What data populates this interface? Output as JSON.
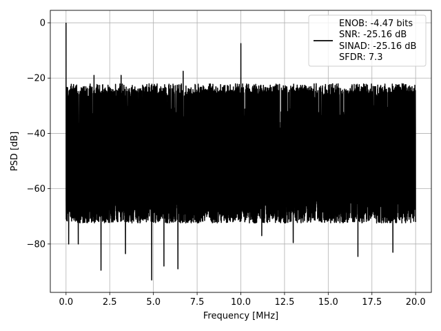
{
  "chart_data": {
    "type": "line",
    "title": "",
    "xlabel": "Frequency [MHz]",
    "ylabel": "PSD [dB]",
    "xlim": [
      -0.9,
      20.9
    ],
    "ylim": [
      -97.5,
      4.5
    ],
    "x_ticks": [
      0.0,
      2.5,
      5.0,
      7.5,
      10.0,
      12.5,
      15.0,
      17.5,
      20.0
    ],
    "x_tick_labels": [
      "0.0",
      "2.5",
      "5.0",
      "7.5",
      "10.0",
      "12.5",
      "15.0",
      "17.5",
      "20.0"
    ],
    "y_ticks": [
      0,
      -20,
      -40,
      -60,
      -80
    ],
    "y_tick_labels": [
      "0",
      "−20",
      "−40",
      "−60",
      "−80"
    ],
    "grid": true,
    "legend_position": "top-right",
    "line_color": "#000000",
    "series": [
      {
        "name": "ENOB: -4.47 bits\nSNR: -25.16 dB\nSINAD: -25.16 dB\nSFDR: 7.3",
        "legend_lines": [
          "ENOB: -4.47 bits",
          "SNR: -25.16 dB",
          "SINAD: -25.16 dB",
          "SFDR: 7.3"
        ],
        "x_range": [
          0.0,
          20.0
        ],
        "noise_floor_upper_db": -25,
        "noise_floor_lower_db": -70,
        "peaks": [
          {
            "x": 0.0,
            "y": 0.0
          },
          {
            "x": 1.6,
            "y": -19.0
          },
          {
            "x": 3.15,
            "y": -19.0
          },
          {
            "x": 6.7,
            "y": -17.5
          },
          {
            "x": 10.0,
            "y": -7.5
          }
        ],
        "dips": [
          {
            "x": 0.15,
            "y": -80.0
          },
          {
            "x": 0.7,
            "y": -80.0
          },
          {
            "x": 2.0,
            "y": -89.5
          },
          {
            "x": 3.4,
            "y": -83.5
          },
          {
            "x": 4.9,
            "y": -93.0
          },
          {
            "x": 5.6,
            "y": -88.0
          },
          {
            "x": 6.4,
            "y": -89.0
          },
          {
            "x": 11.2,
            "y": -77.0
          },
          {
            "x": 13.0,
            "y": -79.5
          },
          {
            "x": 16.7,
            "y": -84.5
          },
          {
            "x": 18.7,
            "y": -83.0
          }
        ]
      }
    ]
  }
}
